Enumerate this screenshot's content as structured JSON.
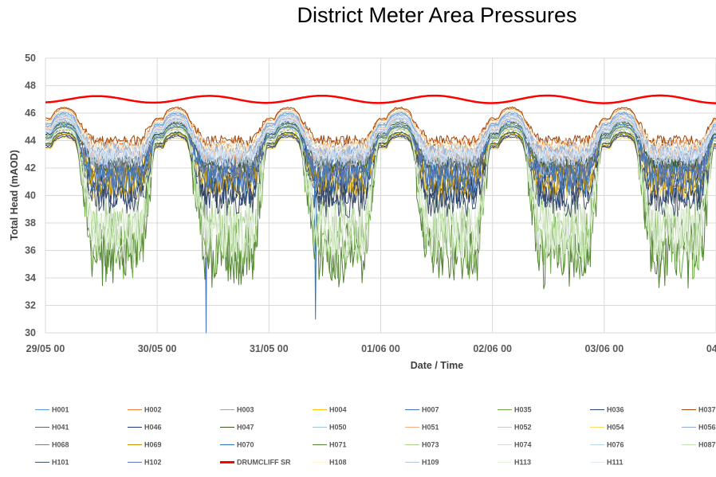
{
  "chart_data": {
    "type": "line",
    "title": "District Meter Area Pressures",
    "xlabel": "Date / Time",
    "ylabel": "Total Head (mAOD)",
    "ylim": [
      30,
      50
    ],
    "yticks": [
      30,
      32,
      34,
      36,
      38,
      40,
      42,
      44,
      46,
      48,
      50
    ],
    "xticks_days": [
      0,
      1,
      2,
      3,
      4,
      5,
      6
    ],
    "xtick_labels": [
      "29/05 00",
      "30/05 00",
      "31/05 00",
      "01/06 00",
      "02/06 00",
      "03/06 00",
      "04/0"
    ],
    "xlim_days": [
      0,
      6
    ],
    "grid": true,
    "legend_position": "bottom",
    "series": [
      {
        "name": "H001",
        "color": "#5b9bd5",
        "day_level": 45.2,
        "night_low": 42.6,
        "noise": 0.3
      },
      {
        "name": "H002",
        "color": "#ed7d31",
        "day_level": 45.5,
        "night_low": 43.8,
        "noise": 0.2
      },
      {
        "name": "H003",
        "color": "#a5a5a5",
        "day_level": 44.8,
        "night_low": 42.9,
        "noise": 0.3
      },
      {
        "name": "H004",
        "color": "#ffc000",
        "day_level": 44.0,
        "night_low": 41.6,
        "noise": 0.4
      },
      {
        "name": "H007",
        "color": "#4472c4",
        "day_level": 44.6,
        "night_low": 42.0,
        "noise": 0.4
      },
      {
        "name": "H035",
        "color": "#70ad47",
        "day_level": 44.2,
        "night_low": 36.3,
        "noise": 1.2
      },
      {
        "name": "H036",
        "color": "#264478",
        "day_level": 43.6,
        "night_low": 40.2,
        "noise": 0.6
      },
      {
        "name": "H037",
        "color": "#9e480e",
        "day_level": 45.6,
        "night_low": 44.0,
        "noise": 0.2
      },
      {
        "name": "H041",
        "color": "#636363",
        "day_level": 44.3,
        "night_low": 41.8,
        "noise": 0.4
      },
      {
        "name": "H046",
        "color": "#203864",
        "day_level": 43.8,
        "night_low": 40.5,
        "noise": 0.6
      },
      {
        "name": "H047",
        "color": "#385723",
        "day_level": 44.5,
        "night_low": 42.3,
        "noise": 0.3
      },
      {
        "name": "H050",
        "color": "#9dc3e6",
        "day_level": 45.0,
        "night_low": 43.2,
        "noise": 0.3
      },
      {
        "name": "H051",
        "color": "#f4b183",
        "day_level": 44.9,
        "night_low": 43.0,
        "noise": 0.3
      },
      {
        "name": "H052",
        "color": "#c9c9c9",
        "day_level": 45.3,
        "night_low": 43.5,
        "noise": 0.2
      },
      {
        "name": "H054",
        "color": "#ffd966",
        "day_level": 43.4,
        "night_low": 40.8,
        "noise": 0.5
      },
      {
        "name": "H056",
        "color": "#8faadc",
        "day_level": 45.1,
        "night_low": 43.3,
        "noise": 0.2
      },
      {
        "name": "H068",
        "color": "#7f7f7f",
        "day_level": 44.0,
        "night_low": 42.1,
        "noise": 0.4
      },
      {
        "name": "H069",
        "color": "#bf9000",
        "day_level": 43.7,
        "night_low": 41.0,
        "noise": 0.5
      },
      {
        "name": "H070",
        "color": "#2e75b6",
        "day_level": 44.4,
        "night_low": 41.2,
        "noise": 0.6
      },
      {
        "name": "H071",
        "color": "#548235",
        "day_level": 43.8,
        "night_low": 35.8,
        "noise": 1.3
      },
      {
        "name": "H073",
        "color": "#a9d18e",
        "day_level": 44.3,
        "night_low": 37.8,
        "noise": 1.0
      },
      {
        "name": "H074",
        "color": "#d9d9d9",
        "day_level": 44.6,
        "night_low": 43.1,
        "noise": 0.2
      },
      {
        "name": "H076",
        "color": "#bdd7ee",
        "day_level": 44.7,
        "night_low": 42.8,
        "noise": 0.3
      },
      {
        "name": "H087",
        "color": "#c5e0b4",
        "day_level": 44.1,
        "night_low": 37.2,
        "noise": 1.1
      },
      {
        "name": "H101",
        "color": "#44546a",
        "day_level": 43.5,
        "night_low": 39.8,
        "noise": 0.7
      },
      {
        "name": "H102",
        "color": "#5a78b8",
        "day_level": 44.2,
        "night_low": 41.4,
        "noise": 0.5
      },
      {
        "name": "DRUMCLIFF SR",
        "color": "#ff0000",
        "day_level": 47.0,
        "night_low": 46.8,
        "noise": 0.0
      },
      {
        "name": "H108",
        "color": "#fff2cc",
        "day_level": 45.4,
        "night_low": 43.6,
        "noise": 0.2
      },
      {
        "name": "H109",
        "color": "#b4c7e7",
        "day_level": 44.8,
        "night_low": 42.7,
        "noise": 0.3
      },
      {
        "name": "H113",
        "color": "#e2f0d9",
        "day_level": 44.0,
        "night_low": 37.5,
        "noise": 1.0
      },
      {
        "name": "H111",
        "color": "#deebf7",
        "day_level": 44.9,
        "night_low": 43.0,
        "noise": 0.2
      }
    ],
    "annotations": [
      {
        "series": "H007",
        "type": "spike",
        "x_day": 1.44,
        "y": 30.0
      },
      {
        "series": "H070",
        "type": "spike",
        "x_day": 2.42,
        "y": 31.0
      }
    ]
  }
}
